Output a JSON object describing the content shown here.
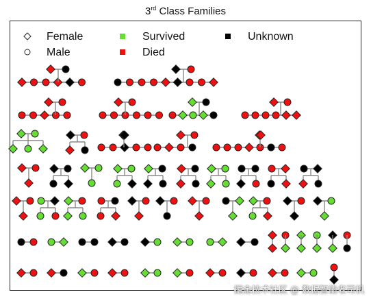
{
  "title": {
    "prefix": "3",
    "superscript": "rd",
    "rest": " Class Families"
  },
  "legend": [
    {
      "label": "Female",
      "shape": "diamond",
      "fill": "none"
    },
    {
      "label": "Male",
      "shape": "circle",
      "fill": "none"
    },
    {
      "label": "Survived",
      "shape": "square",
      "fill": "survived"
    },
    {
      "label": "Died",
      "shape": "square",
      "fill": "died"
    },
    {
      "label": "Unknown",
      "shape": "square",
      "fill": "unknown"
    }
  ],
  "colors": {
    "survived": "#66dd33",
    "died": "#ee1111",
    "unknown": "#000000",
    "line": "#888888",
    "outline": "#222222"
  },
  "watermark": "掘金技术社区 @ 数据智能老司机"
}
